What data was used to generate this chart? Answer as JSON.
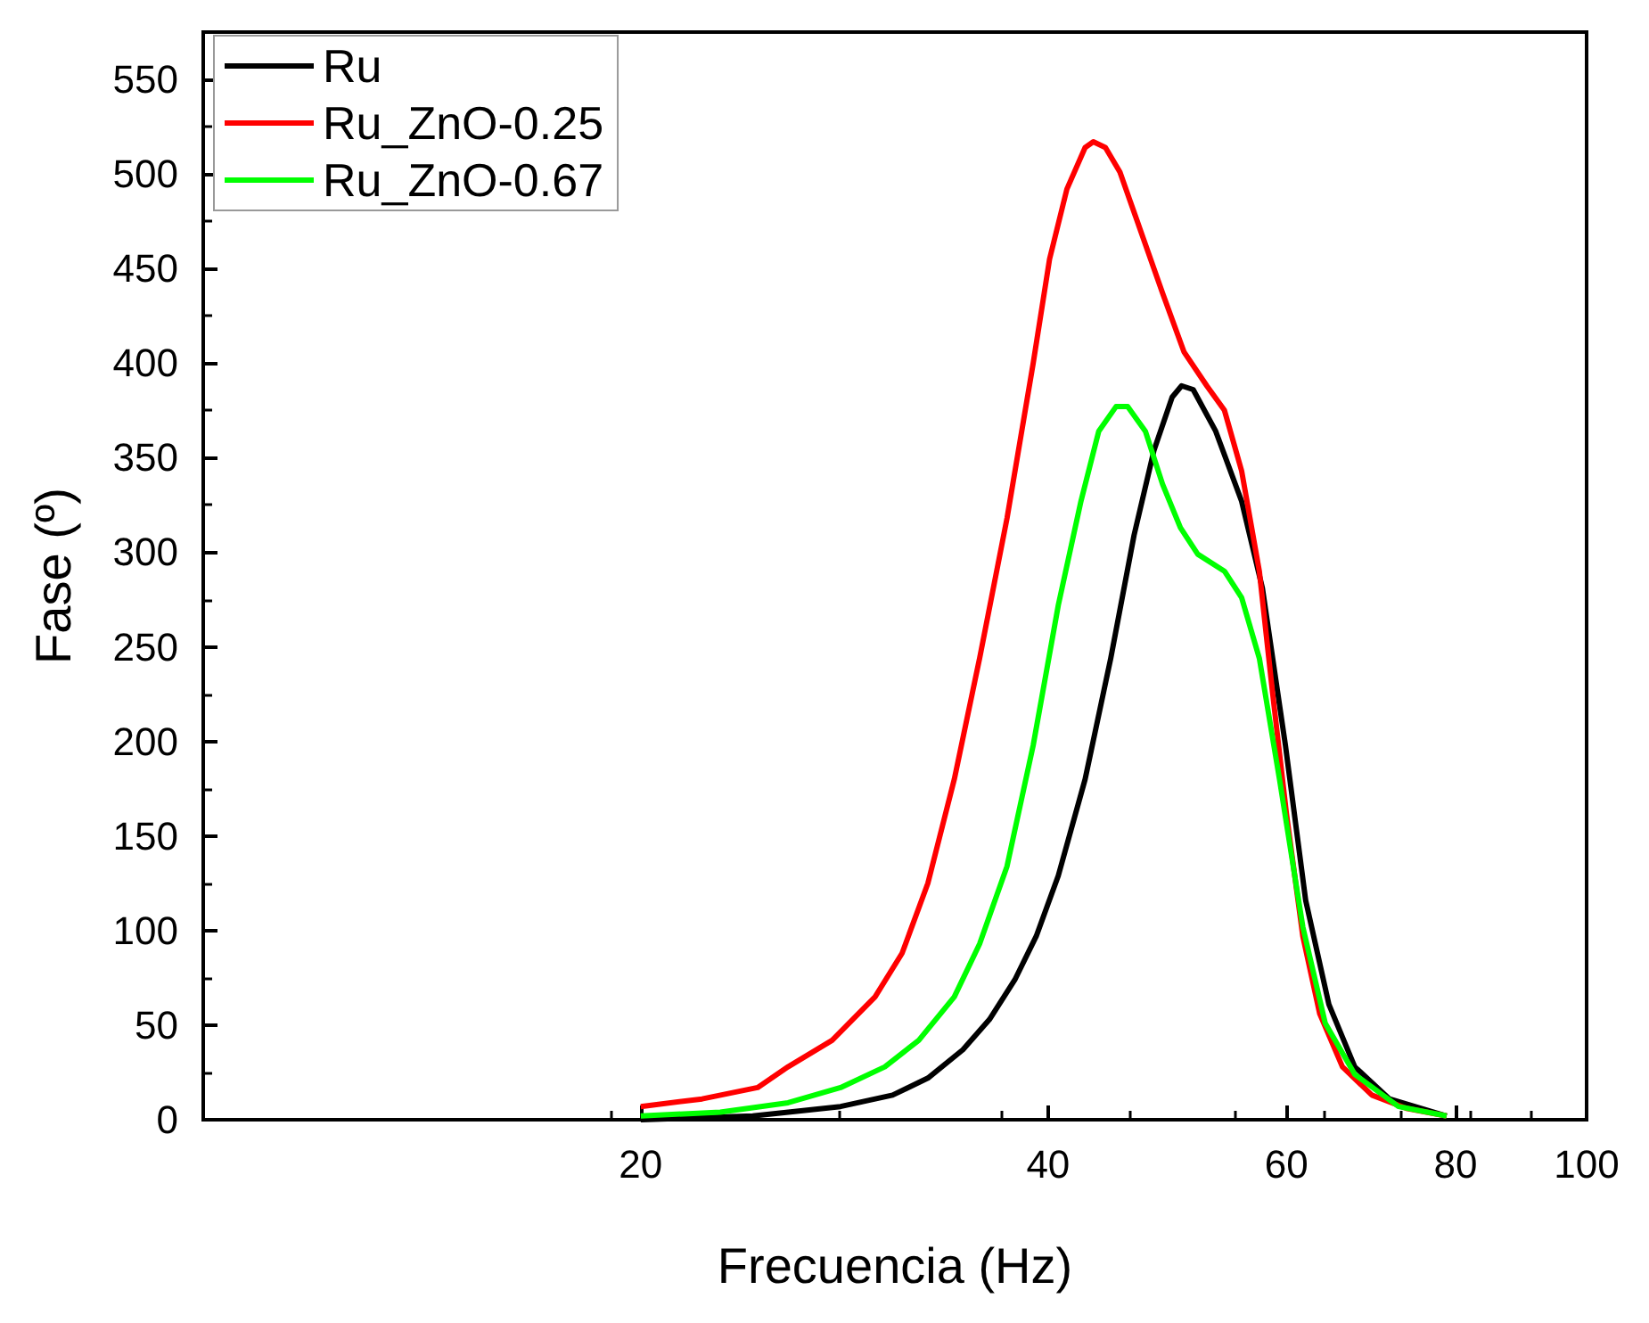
{
  "chart_data": {
    "type": "line",
    "xlabel": "Frecuencia (Hz)",
    "ylabel": "Fase (º)",
    "log": "x",
    "xlim": [
      9.5,
      100
    ],
    "xticks": [
      20,
      40,
      60,
      80,
      100
    ],
    "ylim": [
      0,
      575
    ],
    "yticks": [
      0,
      50,
      100,
      150,
      200,
      250,
      300,
      350,
      400,
      450,
      500,
      550
    ],
    "grid": false,
    "legend": "top left",
    "marker": "none",
    "line_style": "solid",
    "series": [
      {
        "name": "Ru",
        "color": "#000000",
        "x": [
          20,
          24.2,
          28.1,
          30.7,
          32.6,
          34.6,
          36.2,
          37.8,
          39.2,
          40.7,
          42.6,
          44.5,
          46.3,
          47.9,
          49.4,
          50.2,
          51.2,
          53.2,
          55.6,
          57.6,
          59.9,
          62.0,
          64.5,
          67.4,
          71.5,
          78.8
        ],
        "values": [
          0,
          2,
          7,
          13,
          22,
          37,
          53,
          74,
          97,
          129,
          180,
          244,
          309,
          354,
          382,
          388,
          386,
          364,
          327,
          281,
          198,
          116,
          61,
          28,
          11,
          2
        ]
      },
      {
        "name": "Ru_ZnO-0.25",
        "color": "#ff0000",
        "x": [
          20,
          22.2,
          24.4,
          25.7,
          27.7,
          29.8,
          31.2,
          32.6,
          34.1,
          35.6,
          37.3,
          39.0,
          40.1,
          41.3,
          42.6,
          43.2,
          44.1,
          45.2,
          46.5,
          48.6,
          50.4,
          52.4,
          54.0,
          55.6,
          57.3,
          58.6,
          60.0,
          61.7,
          63.5,
          66.0,
          69.4,
          73.6,
          78.8
        ],
        "values": [
          7,
          11,
          17,
          28,
          42,
          65,
          88,
          125,
          180,
          244,
          318,
          400,
          455,
          492,
          514,
          517,
          514,
          501,
          476,
          437,
          406,
          388,
          375,
          343,
          290,
          226,
          162,
          97,
          56,
          28,
          13,
          6,
          2
        ]
      },
      {
        "name": "Ru_ZnO-0.67",
        "color": "#00ff00",
        "x": [
          20,
          22.9,
          25.7,
          28.1,
          30.3,
          32.1,
          34.1,
          35.6,
          37.3,
          39.0,
          40.7,
          42.3,
          43.6,
          44.9,
          45.8,
          47.2,
          48.6,
          50.1,
          51.6,
          54.0,
          55.6,
          57.3,
          59.3,
          61.7,
          64.1,
          67.4,
          72.6,
          78.8
        ],
        "values": [
          2,
          4,
          9,
          17,
          28,
          42,
          65,
          93,
          134,
          198,
          272,
          327,
          364,
          377,
          377,
          364,
          336,
          313,
          299,
          290,
          276,
          244,
          180,
          102,
          51,
          24,
          7,
          2
        ]
      }
    ]
  }
}
